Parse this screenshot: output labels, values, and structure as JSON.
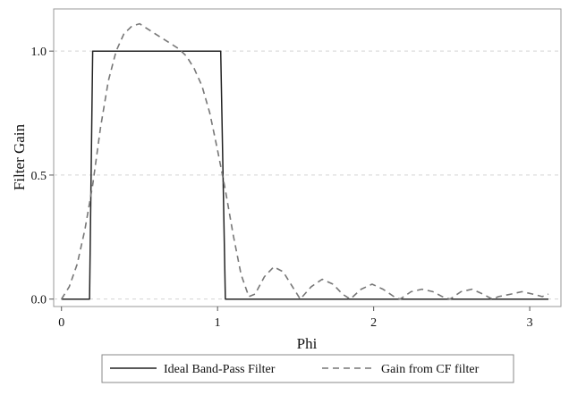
{
  "chart_data": {
    "type": "line",
    "title": "",
    "xlabel": "Phi",
    "ylabel": "Filter Gain",
    "xlim": [
      -0.05,
      3.2
    ],
    "ylim": [
      -0.03,
      1.17
    ],
    "x_ticks": [
      0,
      1,
      2,
      3
    ],
    "x_tick_labels": [
      "0",
      "1",
      "2",
      "3"
    ],
    "y_ticks": [
      0.0,
      0.5,
      1.0
    ],
    "y_tick_labels": [
      "0.0",
      "0.5",
      "1.0"
    ],
    "grid": "horizontal dashed at y ticks",
    "legend_position": "bottom",
    "series": [
      {
        "name": "Ideal Band-Pass Filter",
        "style": "solid",
        "color": "#222222",
        "x": [
          0.0,
          0.18,
          0.2,
          1.02,
          1.05,
          3.12
        ],
        "y": [
          0.0,
          0.0,
          1.0,
          1.0,
          0.0,
          0.0
        ]
      },
      {
        "name": "Gain from CF filter",
        "style": "dashed",
        "color": "#777777",
        "x": [
          0.0,
          0.05,
          0.1,
          0.15,
          0.2,
          0.25,
          0.3,
          0.35,
          0.4,
          0.45,
          0.5,
          0.55,
          0.6,
          0.65,
          0.7,
          0.75,
          0.8,
          0.85,
          0.9,
          0.95,
          1.0,
          1.05,
          1.1,
          1.15,
          1.2,
          1.24,
          1.3,
          1.36,
          1.42,
          1.48,
          1.53,
          1.6,
          1.67,
          1.74,
          1.8,
          1.85,
          1.92,
          1.99,
          2.06,
          2.13,
          2.17,
          2.24,
          2.31,
          2.38,
          2.44,
          2.49,
          2.56,
          2.63,
          2.7,
          2.76,
          2.8,
          2.88,
          2.95,
          3.02,
          3.08,
          3.12
        ],
        "y": [
          0.0,
          0.05,
          0.14,
          0.28,
          0.46,
          0.69,
          0.88,
          1.0,
          1.07,
          1.1,
          1.11,
          1.09,
          1.07,
          1.05,
          1.03,
          1.01,
          0.98,
          0.93,
          0.86,
          0.75,
          0.6,
          0.44,
          0.26,
          0.1,
          0.01,
          0.02,
          0.09,
          0.13,
          0.11,
          0.05,
          0.0,
          0.05,
          0.08,
          0.06,
          0.02,
          0.0,
          0.04,
          0.06,
          0.04,
          0.01,
          0.0,
          0.03,
          0.04,
          0.03,
          0.01,
          0.0,
          0.03,
          0.04,
          0.02,
          0.0,
          0.01,
          0.02,
          0.03,
          0.02,
          0.01,
          0.02
        ]
      }
    ]
  }
}
